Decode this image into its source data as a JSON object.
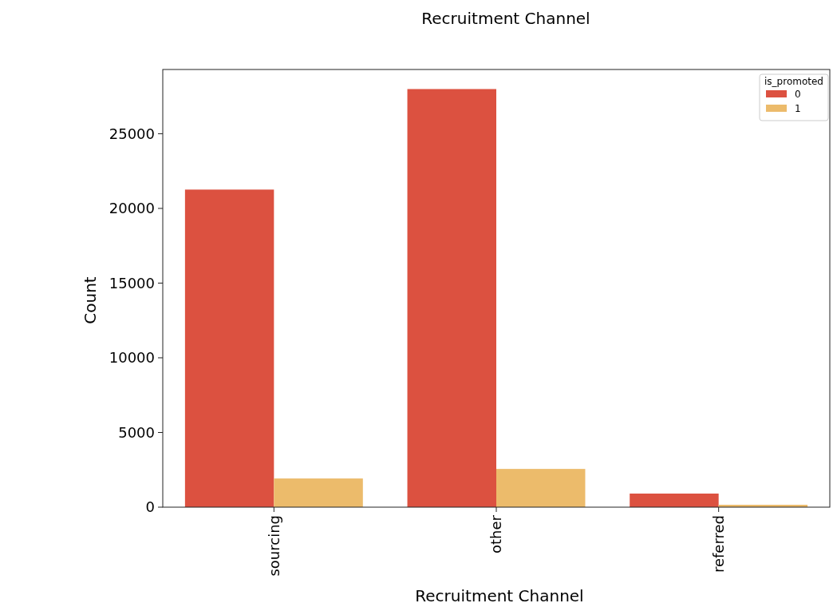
{
  "chart_data": {
    "type": "bar",
    "title": "Recruitment Channel",
    "xlabel": "Recruitment Channel",
    "ylabel": "Count",
    "legend_title": "is_promoted",
    "categories": [
      "sourcing",
      "other",
      "referred"
    ],
    "series": [
      {
        "name": "0",
        "color": "#dc5140",
        "values": [
          21260,
          27990,
          910
        ]
      },
      {
        "name": "1",
        "color": "#ecbb6b",
        "values": [
          1920,
          2560,
          160
        ]
      }
    ],
    "ylim": [
      0,
      29300
    ],
    "yticks": [
      0,
      5000,
      10000,
      15000,
      20000,
      25000
    ],
    "legend": "top right",
    "grid": false
  }
}
